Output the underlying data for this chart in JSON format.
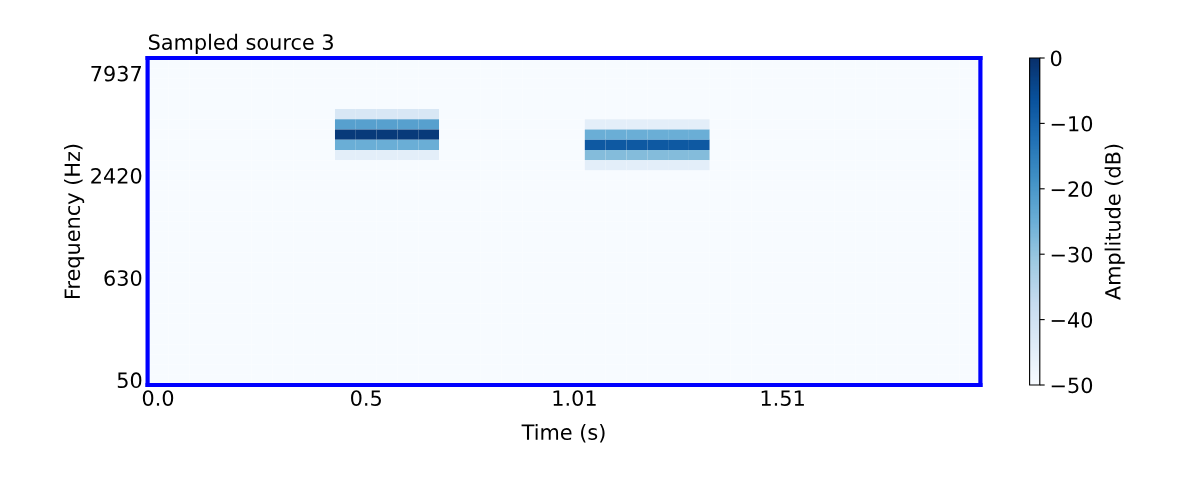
{
  "chart_data": {
    "type": "heatmap",
    "title": "Sampled source 3",
    "xlabel": "Time (s)",
    "ylabel": "Frequency (Hz)",
    "clabel": "Amplitude (dB)",
    "clim": [
      -50,
      0
    ],
    "cticks": [
      -50,
      -40,
      -30,
      -20,
      -10,
      0
    ],
    "categories": [
      "0.0",
      null,
      null,
      null,
      null,
      null,
      null,
      null,
      null,
      null,
      "0.5",
      null,
      null,
      null,
      null,
      null,
      null,
      null,
      null,
      null,
      "1.01",
      null,
      null,
      null,
      null,
      null,
      null,
      null,
      null,
      null,
      "1.51",
      null,
      null,
      null,
      null,
      null,
      null,
      null,
      null,
      null
    ],
    "y_categories": [
      null,
      "7937",
      null,
      null,
      null,
      null,
      null,
      null,
      null,
      null,
      null,
      "2420",
      null,
      null,
      null,
      null,
      null,
      null,
      null,
      null,
      null,
      "630",
      null,
      null,
      null,
      null,
      null,
      null,
      null,
      null,
      null,
      "50"
    ],
    "cells": [
      [
        -50,
        -50,
        -50,
        -50,
        -50,
        -50,
        -50,
        -50,
        -50,
        -50,
        -50,
        -50,
        -50,
        -50,
        -50,
        -50,
        -50,
        -50,
        -50,
        -50,
        -50,
        -50,
        -50,
        -50,
        -50,
        -50,
        -50,
        -50,
        -50,
        -50,
        -50,
        -50,
        -50,
        -50,
        -50,
        -50,
        -50,
        -50,
        -50,
        -50
      ],
      [
        -50,
        -50,
        -50,
        -50,
        -50,
        -50,
        -50,
        -50,
        -50,
        -50,
        -50,
        -50,
        -50,
        -50,
        -50,
        -50,
        -50,
        -50,
        -50,
        -50,
        -50,
        -50,
        -50,
        -50,
        -50,
        -50,
        -50,
        -50,
        -50,
        -50,
        -50,
        -50,
        -50,
        -50,
        -50,
        -50,
        -50,
        -50,
        -50,
        -50
      ],
      [
        -50,
        -50,
        -50,
        -50,
        -50,
        -50,
        -50,
        -50,
        -50,
        -50,
        -50,
        -50,
        -50,
        -50,
        -50,
        -50,
        -50,
        -50,
        -50,
        -50,
        -50,
        -50,
        -50,
        -50,
        -50,
        -50,
        -50,
        -50,
        -50,
        -50,
        -50,
        -50,
        -50,
        -50,
        -50,
        -50,
        -50,
        -50,
        -50,
        -50
      ],
      [
        -50,
        -50,
        -50,
        -50,
        -50,
        -50,
        -50,
        -50,
        -50,
        -50,
        -50,
        -50,
        -50,
        -50,
        -50,
        -50,
        -50,
        -50,
        -50,
        -50,
        -50,
        -50,
        -50,
        -50,
        -50,
        -50,
        -50,
        -50,
        -50,
        -50,
        -50,
        -50,
        -50,
        -50,
        -50,
        -50,
        -50,
        -50,
        -50,
        -50
      ],
      [
        -50,
        -50,
        -50,
        -50,
        -50,
        -50,
        -50,
        -50,
        -50,
        -50,
        -50,
        -50,
        -50,
        -50,
        -50,
        -50,
        -50,
        -50,
        -50,
        -50,
        -50,
        -50,
        -50,
        -50,
        -50,
        -50,
        -50,
        -50,
        -50,
        -50,
        -50,
        -50,
        -50,
        -50,
        -50,
        -50,
        -50,
        -50,
        -50,
        -50
      ],
      [
        -50,
        -50,
        -50,
        -50,
        -50,
        -50,
        -50,
        -50,
        -50,
        -42,
        -42,
        -42,
        -42,
        -42,
        -50,
        -50,
        -50,
        -50,
        -50,
        -50,
        -50,
        -50,
        -50,
        -50,
        -50,
        -50,
        -50,
        -50,
        -50,
        -50,
        -50,
        -50,
        -50,
        -50,
        -50,
        -50,
        -50,
        -50,
        -50,
        -50
      ],
      [
        -50,
        -50,
        -50,
        -50,
        -50,
        -50,
        -50,
        -50,
        -50,
        -22,
        -22,
        -22,
        -22,
        -22,
        -50,
        -50,
        -50,
        -50,
        -50,
        -50,
        -50,
        -45,
        -45,
        -45,
        -45,
        -45,
        -45,
        -50,
        -50,
        -50,
        -50,
        -50,
        -50,
        -50,
        -50,
        -50,
        -50,
        -50,
        -50,
        -50
      ],
      [
        -50,
        -50,
        -50,
        -50,
        -50,
        -50,
        -50,
        -50,
        -50,
        -2,
        -2,
        -2,
        -2,
        -2,
        -50,
        -50,
        -50,
        -50,
        -50,
        -50,
        -50,
        -25,
        -25,
        -25,
        -25,
        -25,
        -25,
        -50,
        -50,
        -50,
        -50,
        -50,
        -50,
        -50,
        -50,
        -50,
        -50,
        -50,
        -50,
        -50
      ],
      [
        -50,
        -50,
        -50,
        -50,
        -50,
        -50,
        -50,
        -50,
        -50,
        -25,
        -25,
        -25,
        -25,
        -25,
        -50,
        -50,
        -50,
        -50,
        -50,
        -50,
        -50,
        -8,
        -8,
        -8,
        -8,
        -8,
        -8,
        -50,
        -50,
        -50,
        -50,
        -50,
        -50,
        -50,
        -50,
        -50,
        -50,
        -50,
        -50,
        -50
      ],
      [
        -50,
        -50,
        -50,
        -50,
        -50,
        -50,
        -50,
        -50,
        -50,
        -45,
        -45,
        -45,
        -45,
        -45,
        -50,
        -50,
        -50,
        -50,
        -50,
        -50,
        -50,
        -28,
        -28,
        -28,
        -28,
        -28,
        -28,
        -50,
        -50,
        -50,
        -50,
        -50,
        -50,
        -50,
        -50,
        -50,
        -50,
        -50,
        -50,
        -50
      ],
      [
        -50,
        -50,
        -50,
        -50,
        -50,
        -50,
        -50,
        -50,
        -50,
        -50,
        -50,
        -50,
        -50,
        -50,
        -50,
        -50,
        -50,
        -50,
        -50,
        -50,
        -50,
        -45,
        -45,
        -45,
        -45,
        -45,
        -45,
        -50,
        -50,
        -50,
        -50,
        -50,
        -50,
        -50,
        -50,
        -50,
        -50,
        -50,
        -50,
        -50
      ],
      [
        -50,
        -50,
        -50,
        -50,
        -50,
        -50,
        -50,
        -50,
        -50,
        -50,
        -50,
        -50,
        -50,
        -50,
        -50,
        -50,
        -50,
        -50,
        -50,
        -50,
        -50,
        -50,
        -50,
        -50,
        -50,
        -50,
        -50,
        -50,
        -50,
        -50,
        -50,
        -50,
        -50,
        -50,
        -50,
        -50,
        -50,
        -50,
        -50,
        -50
      ],
      [
        -50,
        -50,
        -50,
        -50,
        -50,
        -50,
        -50,
        -50,
        -50,
        -50,
        -50,
        -50,
        -50,
        -50,
        -50,
        -50,
        -50,
        -50,
        -50,
        -50,
        -50,
        -50,
        -50,
        -50,
        -50,
        -50,
        -50,
        -50,
        -50,
        -50,
        -50,
        -50,
        -50,
        -50,
        -50,
        -50,
        -50,
        -50,
        -50,
        -50
      ],
      [
        -50,
        -50,
        -50,
        -50,
        -50,
        -50,
        -50,
        -50,
        -50,
        -50,
        -50,
        -50,
        -50,
        -50,
        -50,
        -50,
        -50,
        -50,
        -50,
        -50,
        -50,
        -50,
        -50,
        -50,
        -50,
        -50,
        -50,
        -50,
        -50,
        -50,
        -50,
        -50,
        -50,
        -50,
        -50,
        -50,
        -50,
        -50,
        -50,
        -50
      ],
      [
        -50,
        -50,
        -50,
        -50,
        -50,
        -50,
        -50,
        -50,
        -50,
        -50,
        -50,
        -50,
        -50,
        -50,
        -50,
        -50,
        -50,
        -50,
        -50,
        -50,
        -50,
        -50,
        -50,
        -50,
        -50,
        -50,
        -50,
        -50,
        -50,
        -50,
        -50,
        -50,
        -50,
        -50,
        -50,
        -50,
        -50,
        -50,
        -50,
        -50
      ],
      [
        -50,
        -50,
        -50,
        -50,
        -50,
        -50,
        -50,
        -50,
        -50,
        -50,
        -50,
        -50,
        -50,
        -50,
        -50,
        -50,
        -50,
        -50,
        -50,
        -50,
        -50,
        -50,
        -50,
        -50,
        -50,
        -50,
        -50,
        -50,
        -50,
        -50,
        -50,
        -50,
        -50,
        -50,
        -50,
        -50,
        -50,
        -50,
        -50,
        -50
      ],
      [
        -50,
        -50,
        -50,
        -50,
        -50,
        -50,
        -50,
        -50,
        -50,
        -50,
        -50,
        -50,
        -50,
        -50,
        -50,
        -50,
        -50,
        -50,
        -50,
        -50,
        -50,
        -50,
        -50,
        -50,
        -50,
        -50,
        -50,
        -50,
        -50,
        -50,
        -50,
        -50,
        -50,
        -50,
        -50,
        -50,
        -50,
        -50,
        -50,
        -50
      ],
      [
        -50,
        -50,
        -50,
        -50,
        -50,
        -50,
        -50,
        -50,
        -50,
        -50,
        -50,
        -50,
        -50,
        -50,
        -50,
        -50,
        -50,
        -50,
        -50,
        -50,
        -50,
        -50,
        -50,
        -50,
        -50,
        -50,
        -50,
        -50,
        -50,
        -50,
        -50,
        -50,
        -50,
        -50,
        -50,
        -50,
        -50,
        -50,
        -50,
        -50
      ],
      [
        -50,
        -50,
        -50,
        -50,
        -50,
        -50,
        -50,
        -50,
        -50,
        -50,
        -50,
        -50,
        -50,
        -50,
        -50,
        -50,
        -50,
        -50,
        -50,
        -50,
        -50,
        -50,
        -50,
        -50,
        -50,
        -50,
        -50,
        -50,
        -50,
        -50,
        -50,
        -50,
        -50,
        -50,
        -50,
        -50,
        -50,
        -50,
        -50,
        -50
      ],
      [
        -50,
        -50,
        -50,
        -50,
        -50,
        -50,
        -50,
        -50,
        -50,
        -50,
        -50,
        -50,
        -50,
        -50,
        -50,
        -50,
        -50,
        -50,
        -50,
        -50,
        -50,
        -50,
        -50,
        -50,
        -50,
        -50,
        -50,
        -50,
        -50,
        -50,
        -50,
        -50,
        -50,
        -50,
        -50,
        -50,
        -50,
        -50,
        -50,
        -50
      ],
      [
        -50,
        -50,
        -50,
        -50,
        -50,
        -50,
        -50,
        -50,
        -50,
        -50,
        -50,
        -50,
        -50,
        -50,
        -50,
        -50,
        -50,
        -50,
        -50,
        -50,
        -50,
        -50,
        -50,
        -50,
        -50,
        -50,
        -50,
        -50,
        -50,
        -50,
        -50,
        -50,
        -50,
        -50,
        -50,
        -50,
        -50,
        -50,
        -50,
        -50
      ],
      [
        -50,
        -50,
        -50,
        -50,
        -50,
        -50,
        -50,
        -50,
        -50,
        -50,
        -50,
        -50,
        -50,
        -50,
        -50,
        -50,
        -50,
        -50,
        -50,
        -50,
        -50,
        -50,
        -50,
        -50,
        -50,
        -50,
        -50,
        -50,
        -50,
        -50,
        -50,
        -50,
        -50,
        -50,
        -50,
        -50,
        -50,
        -50,
        -50,
        -50
      ],
      [
        -50,
        -50,
        -50,
        -50,
        -50,
        -50,
        -50,
        -50,
        -50,
        -50,
        -50,
        -50,
        -50,
        -50,
        -50,
        -50,
        -50,
        -50,
        -50,
        -50,
        -50,
        -50,
        -50,
        -50,
        -50,
        -50,
        -50,
        -50,
        -50,
        -50,
        -50,
        -50,
        -50,
        -50,
        -50,
        -50,
        -50,
        -50,
        -50,
        -50
      ],
      [
        -50,
        -50,
        -50,
        -50,
        -50,
        -50,
        -50,
        -50,
        -50,
        -50,
        -50,
        -50,
        -50,
        -50,
        -50,
        -50,
        -50,
        -50,
        -50,
        -50,
        -50,
        -50,
        -50,
        -50,
        -50,
        -50,
        -50,
        -50,
        -50,
        -50,
        -50,
        -50,
        -50,
        -50,
        -50,
        -50,
        -50,
        -50,
        -50,
        -50
      ],
      [
        -50,
        -50,
        -50,
        -50,
        -50,
        -50,
        -50,
        -50,
        -50,
        -50,
        -50,
        -50,
        -50,
        -50,
        -50,
        -50,
        -50,
        -50,
        -50,
        -50,
        -50,
        -50,
        -50,
        -50,
        -50,
        -50,
        -50,
        -50,
        -50,
        -50,
        -50,
        -50,
        -50,
        -50,
        -50,
        -50,
        -50,
        -50,
        -50,
        -50
      ],
      [
        -50,
        -50,
        -50,
        -50,
        -50,
        -50,
        -50,
        -50,
        -50,
        -50,
        -50,
        -50,
        -50,
        -50,
        -50,
        -50,
        -50,
        -50,
        -50,
        -50,
        -50,
        -50,
        -50,
        -50,
        -50,
        -50,
        -50,
        -50,
        -50,
        -50,
        -50,
        -50,
        -50,
        -50,
        -50,
        -50,
        -50,
        -50,
        -50,
        -50
      ],
      [
        -50,
        -50,
        -50,
        -50,
        -50,
        -50,
        -50,
        -50,
        -50,
        -50,
        -50,
        -50,
        -50,
        -50,
        -50,
        -50,
        -50,
        -50,
        -50,
        -50,
        -50,
        -50,
        -50,
        -50,
        -50,
        -50,
        -50,
        -50,
        -50,
        -50,
        -50,
        -50,
        -50,
        -50,
        -50,
        -50,
        -50,
        -50,
        -50,
        -50
      ],
      [
        -50,
        -50,
        -50,
        -50,
        -50,
        -50,
        -50,
        -50,
        -50,
        -50,
        -50,
        -50,
        -50,
        -50,
        -50,
        -50,
        -50,
        -50,
        -50,
        -50,
        -50,
        -50,
        -50,
        -50,
        -50,
        -50,
        -50,
        -50,
        -50,
        -50,
        -50,
        -50,
        -50,
        -50,
        -50,
        -50,
        -50,
        -50,
        -50,
        -50
      ],
      [
        -50,
        -50,
        -50,
        -50,
        -50,
        -50,
        -50,
        -50,
        -50,
        -50,
        -50,
        -50,
        -50,
        -50,
        -50,
        -50,
        -50,
        -50,
        -50,
        -50,
        -50,
        -50,
        -50,
        -50,
        -50,
        -50,
        -50,
        -50,
        -50,
        -50,
        -50,
        -50,
        -50,
        -50,
        -50,
        -50,
        -50,
        -50,
        -50,
        -50
      ],
      [
        -50,
        -50,
        -50,
        -50,
        -50,
        -50,
        -50,
        -50,
        -50,
        -50,
        -50,
        -50,
        -50,
        -50,
        -50,
        -50,
        -50,
        -50,
        -50,
        -50,
        -50,
        -50,
        -50,
        -50,
        -50,
        -50,
        -50,
        -50,
        -50,
        -50,
        -50,
        -50,
        -50,
        -50,
        -50,
        -50,
        -50,
        -50,
        -50,
        -50
      ],
      [
        -50,
        -50,
        -50,
        -50,
        -50,
        -50,
        -50,
        -50,
        -50,
        -50,
        -50,
        -50,
        -50,
        -50,
        -50,
        -50,
        -50,
        -50,
        -50,
        -50,
        -50,
        -50,
        -50,
        -50,
        -50,
        -50,
        -50,
        -50,
        -50,
        -50,
        -50,
        -50,
        -50,
        -50,
        -50,
        -50,
        -50,
        -50,
        -50,
        -50
      ],
      [
        -50,
        -50,
        -50,
        -50,
        -50,
        -50,
        -50,
        -50,
        -50,
        -50,
        -50,
        -50,
        -50,
        -50,
        -50,
        -50,
        -50,
        -50,
        -50,
        -50,
        -50,
        -50,
        -50,
        -50,
        -50,
        -50,
        -50,
        -50,
        -50,
        -50,
        -50,
        -50,
        -50,
        -50,
        -50,
        -50,
        -50,
        -50,
        -50,
        -50
      ]
    ]
  }
}
